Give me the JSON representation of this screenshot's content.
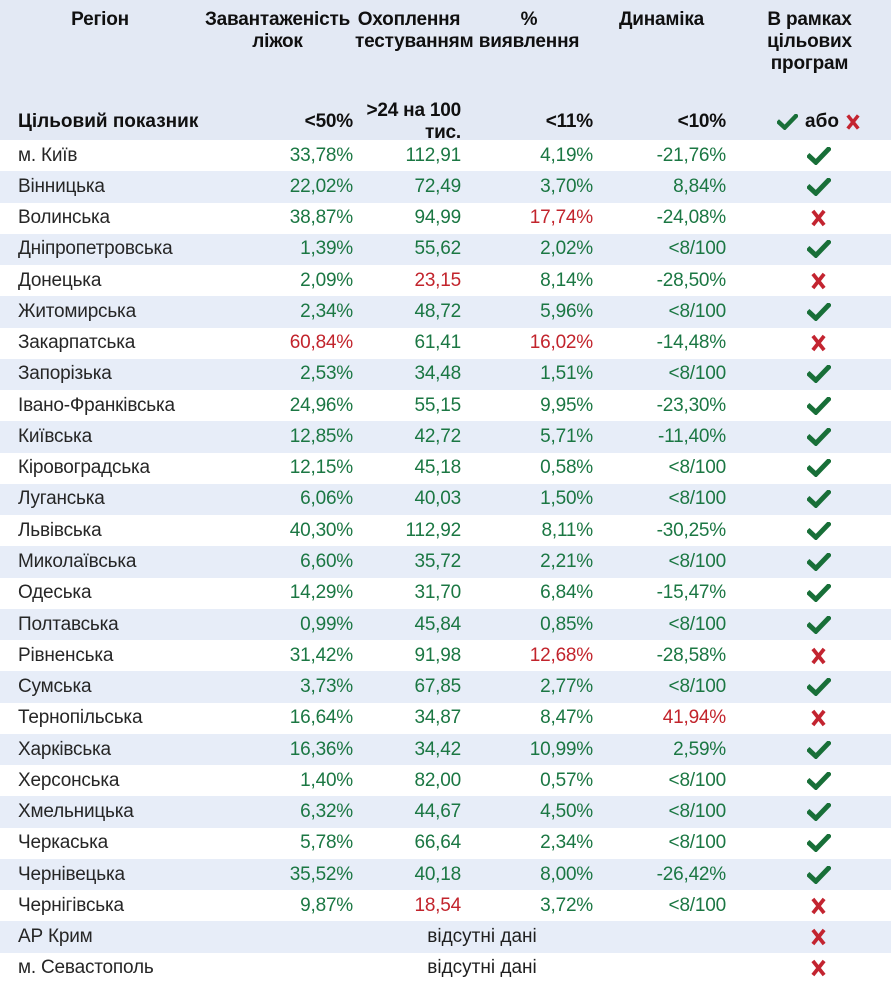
{
  "colors": {
    "green": "#1b7743",
    "red": "#c2242c",
    "check_green": "#186f38",
    "x_red": "#c32430",
    "header_bg": "#e3e9f4",
    "stripe_bg": "#e7edf8"
  },
  "chart_data": {
    "type": "table",
    "columns": [
      "Регіон",
      "Завантаженість\nліжок",
      "Охоплення\nтестуванням",
      "%\nвиявлення",
      "Динаміка",
      "В рамках\nцільових\nпрограм"
    ],
    "target_row": {
      "label": "Цільовий показник",
      "bed": "<50%",
      "testing": ">24 на 100 тис.",
      "detection": "<11%",
      "dynamics": "<10%",
      "or_label": "або"
    },
    "missing_data_label": "відсутні дані",
    "rows": [
      {
        "region": "м. Київ",
        "bed": "33,78%",
        "testing": "112,91",
        "detection": "4,19%",
        "dynamics": "-21,76%",
        "red": [],
        "pass": true
      },
      {
        "region": "Вінницька",
        "bed": "22,02%",
        "testing": "72,49",
        "detection": "3,70%",
        "dynamics": "8,84%",
        "red": [],
        "pass": true
      },
      {
        "region": "Волинська",
        "bed": "38,87%",
        "testing": "94,99",
        "detection": "17,74%",
        "dynamics": "-24,08%",
        "red": [
          "detection"
        ],
        "pass": false
      },
      {
        "region": "Дніпропетровська",
        "bed": "1,39%",
        "testing": "55,62",
        "detection": "2,02%",
        "dynamics": "<8/100",
        "red": [],
        "pass": true
      },
      {
        "region": "Донецька",
        "bed": "2,09%",
        "testing": "23,15",
        "detection": "8,14%",
        "dynamics": "-28,50%",
        "red": [
          "testing"
        ],
        "pass": false
      },
      {
        "region": "Житомирська",
        "bed": "2,34%",
        "testing": "48,72",
        "detection": "5,96%",
        "dynamics": "<8/100",
        "red": [],
        "pass": true
      },
      {
        "region": "Закарпатська",
        "bed": "60,84%",
        "testing": "61,41",
        "detection": "16,02%",
        "dynamics": "-14,48%",
        "red": [
          "bed",
          "detection"
        ],
        "pass": false
      },
      {
        "region": "Запорізька",
        "bed": "2,53%",
        "testing": "34,48",
        "detection": "1,51%",
        "dynamics": "<8/100",
        "red": [],
        "pass": true
      },
      {
        "region": "Івано-Франківська",
        "bed": "24,96%",
        "testing": "55,15",
        "detection": "9,95%",
        "dynamics": "-23,30%",
        "red": [],
        "pass": true
      },
      {
        "region": "Київська",
        "bed": "12,85%",
        "testing": "42,72",
        "detection": "5,71%",
        "dynamics": "-11,40%",
        "red": [],
        "pass": true
      },
      {
        "region": "Кіровоградська",
        "bed": "12,15%",
        "testing": "45,18",
        "detection": "0,58%",
        "dynamics": "<8/100",
        "red": [],
        "pass": true
      },
      {
        "region": "Луганська",
        "bed": "6,06%",
        "testing": "40,03",
        "detection": "1,50%",
        "dynamics": "<8/100",
        "red": [],
        "pass": true
      },
      {
        "region": "Львівська",
        "bed": "40,30%",
        "testing": "112,92",
        "detection": "8,11%",
        "dynamics": "-30,25%",
        "red": [],
        "pass": true
      },
      {
        "region": "Миколаївська",
        "bed": "6,60%",
        "testing": "35,72",
        "detection": "2,21%",
        "dynamics": "<8/100",
        "red": [],
        "pass": true
      },
      {
        "region": "Одеська",
        "bed": "14,29%",
        "testing": "31,70",
        "detection": "6,84%",
        "dynamics": "-15,47%",
        "red": [],
        "pass": true
      },
      {
        "region": "Полтавська",
        "bed": "0,99%",
        "testing": "45,84",
        "detection": "0,85%",
        "dynamics": "<8/100",
        "red": [],
        "pass": true
      },
      {
        "region": "Рівненська",
        "bed": "31,42%",
        "testing": "91,98",
        "detection": "12,68%",
        "dynamics": "-28,58%",
        "red": [
          "detection"
        ],
        "pass": false
      },
      {
        "region": "Сумська",
        "bed": "3,73%",
        "testing": "67,85",
        "detection": "2,77%",
        "dynamics": "<8/100",
        "red": [],
        "pass": true
      },
      {
        "region": "Тернопільська",
        "bed": "16,64%",
        "testing": "34,87",
        "detection": "8,47%",
        "dynamics": "41,94%",
        "red": [
          "dynamics"
        ],
        "pass": false
      },
      {
        "region": "Харківська",
        "bed": "16,36%",
        "testing": "34,42",
        "detection": "10,99%",
        "dynamics": "2,59%",
        "red": [],
        "pass": true
      },
      {
        "region": "Херсонська",
        "bed": "1,40%",
        "testing": "82,00",
        "detection": "0,57%",
        "dynamics": "<8/100",
        "red": [],
        "pass": true
      },
      {
        "region": "Хмельницька",
        "bed": "6,32%",
        "testing": "44,67",
        "detection": "4,50%",
        "dynamics": "<8/100",
        "red": [],
        "pass": true
      },
      {
        "region": "Черкаська",
        "bed": "5,78%",
        "testing": "66,64",
        "detection": "2,34%",
        "dynamics": "<8/100",
        "red": [],
        "pass": true
      },
      {
        "region": "Чернівецька",
        "bed": "35,52%",
        "testing": "40,18",
        "detection": "8,00%",
        "dynamics": "-26,42%",
        "red": [],
        "pass": true
      },
      {
        "region": "Чернігівська",
        "bed": "9,87%",
        "testing": "18,54",
        "detection": "3,72%",
        "dynamics": "<8/100",
        "red": [
          "testing"
        ],
        "pass": false
      },
      {
        "region": "АР Крим",
        "missing": true,
        "pass": false
      },
      {
        "region": "м. Севастополь",
        "missing": true,
        "pass": false
      }
    ]
  }
}
